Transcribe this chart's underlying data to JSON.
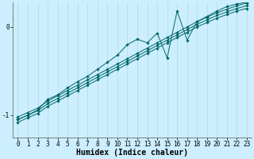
{
  "background_color": "#cceeff",
  "plot_bg_color": "#cceeff",
  "line_color": "#006666",
  "grid_color": "#aadddd",
  "xlabel": "Humidex (Indice chaleur)",
  "x_values": [
    0,
    1,
    2,
    3,
    4,
    5,
    6,
    7,
    8,
    9,
    10,
    11,
    12,
    13,
    14,
    15,
    16,
    17,
    18,
    19,
    20,
    21,
    22,
    23
  ],
  "line1_y": [
    -1.08,
    -1.03,
    -0.98,
    -0.9,
    -0.84,
    -0.78,
    -0.72,
    -0.66,
    -0.6,
    -0.54,
    -0.48,
    -0.42,
    -0.36,
    -0.3,
    -0.24,
    -0.18,
    -0.12,
    -0.06,
    0.0,
    0.05,
    0.1,
    0.14,
    0.18,
    0.21
  ],
  "line2_y": [
    -1.05,
    -1.0,
    -0.95,
    -0.87,
    -0.81,
    -0.75,
    -0.69,
    -0.63,
    -0.57,
    -0.51,
    -0.45,
    -0.39,
    -0.33,
    -0.27,
    -0.21,
    -0.15,
    -0.09,
    -0.03,
    0.03,
    0.08,
    0.13,
    0.17,
    0.21,
    0.24
  ],
  "line3_y": [
    -1.02,
    -0.97,
    -0.92,
    -0.84,
    -0.78,
    -0.72,
    -0.66,
    -0.6,
    -0.54,
    -0.48,
    -0.42,
    -0.36,
    -0.3,
    -0.24,
    -0.18,
    -0.12,
    -0.06,
    0.0,
    0.06,
    0.11,
    0.16,
    0.2,
    0.24,
    0.27
  ],
  "line4_y": [
    -1.05,
    -1.0,
    -0.94,
    -0.82,
    -0.77,
    -0.69,
    -0.62,
    -0.56,
    -0.48,
    -0.4,
    -0.32,
    -0.2,
    -0.14,
    -0.18,
    -0.07,
    -0.35,
    0.18,
    -0.15,
    0.06,
    0.12,
    0.18,
    0.23,
    0.26,
    0.28
  ],
  "yticks": [
    -1,
    0
  ],
  "ylim": [
    -1.25,
    0.28
  ],
  "xlim": [
    -0.5,
    23.5
  ],
  "xticks": [
    0,
    1,
    2,
    3,
    4,
    5,
    6,
    7,
    8,
    9,
    10,
    11,
    12,
    13,
    14,
    15,
    16,
    17,
    18,
    19,
    20,
    21,
    22,
    23
  ],
  "fontsize_label": 7,
  "fontsize_tick": 5.5,
  "marker_size": 1.8,
  "linewidth": 0.7
}
